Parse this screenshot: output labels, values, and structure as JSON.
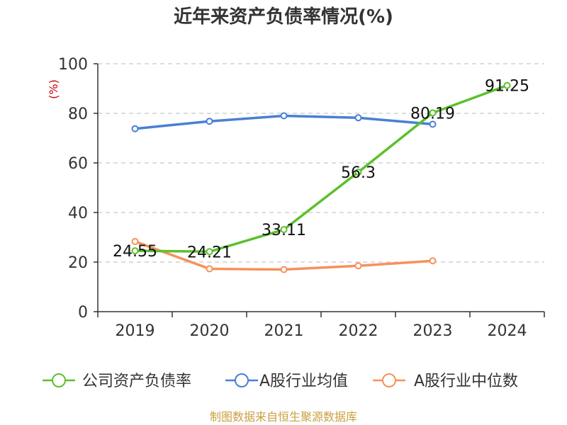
{
  "chart_data": {
    "type": "line",
    "title": "近年来资产负债率情况(%)",
    "unit_label": "(%)",
    "categories": [
      "2019",
      "2020",
      "2021",
      "2022",
      "2023",
      "2024"
    ],
    "ylim": [
      0,
      100
    ],
    "yticks": [
      "0",
      "20",
      "40",
      "60",
      "80",
      "100"
    ],
    "grid": true,
    "legend_position": "bottom",
    "series": [
      {
        "name": "公司资产负债率",
        "color": "#5cc02c",
        "values": [
          24.55,
          24.21,
          33.11,
          56.3,
          80.19,
          91.25
        ],
        "labels": [
          "24.55",
          "24.21",
          "33.11",
          "56.3",
          "80.19",
          "91.25"
        ]
      },
      {
        "name": "A股行业均值",
        "color": "#4a7fd6",
        "values": [
          73.8,
          76.8,
          79.0,
          78.2,
          75.6,
          null
        ]
      },
      {
        "name": "A股行业中位数",
        "color": "#f5915c",
        "values": [
          28.3,
          17.3,
          17.0,
          18.5,
          20.5,
          null
        ]
      }
    ]
  },
  "source": "制图数据来自恒生聚源数据库"
}
